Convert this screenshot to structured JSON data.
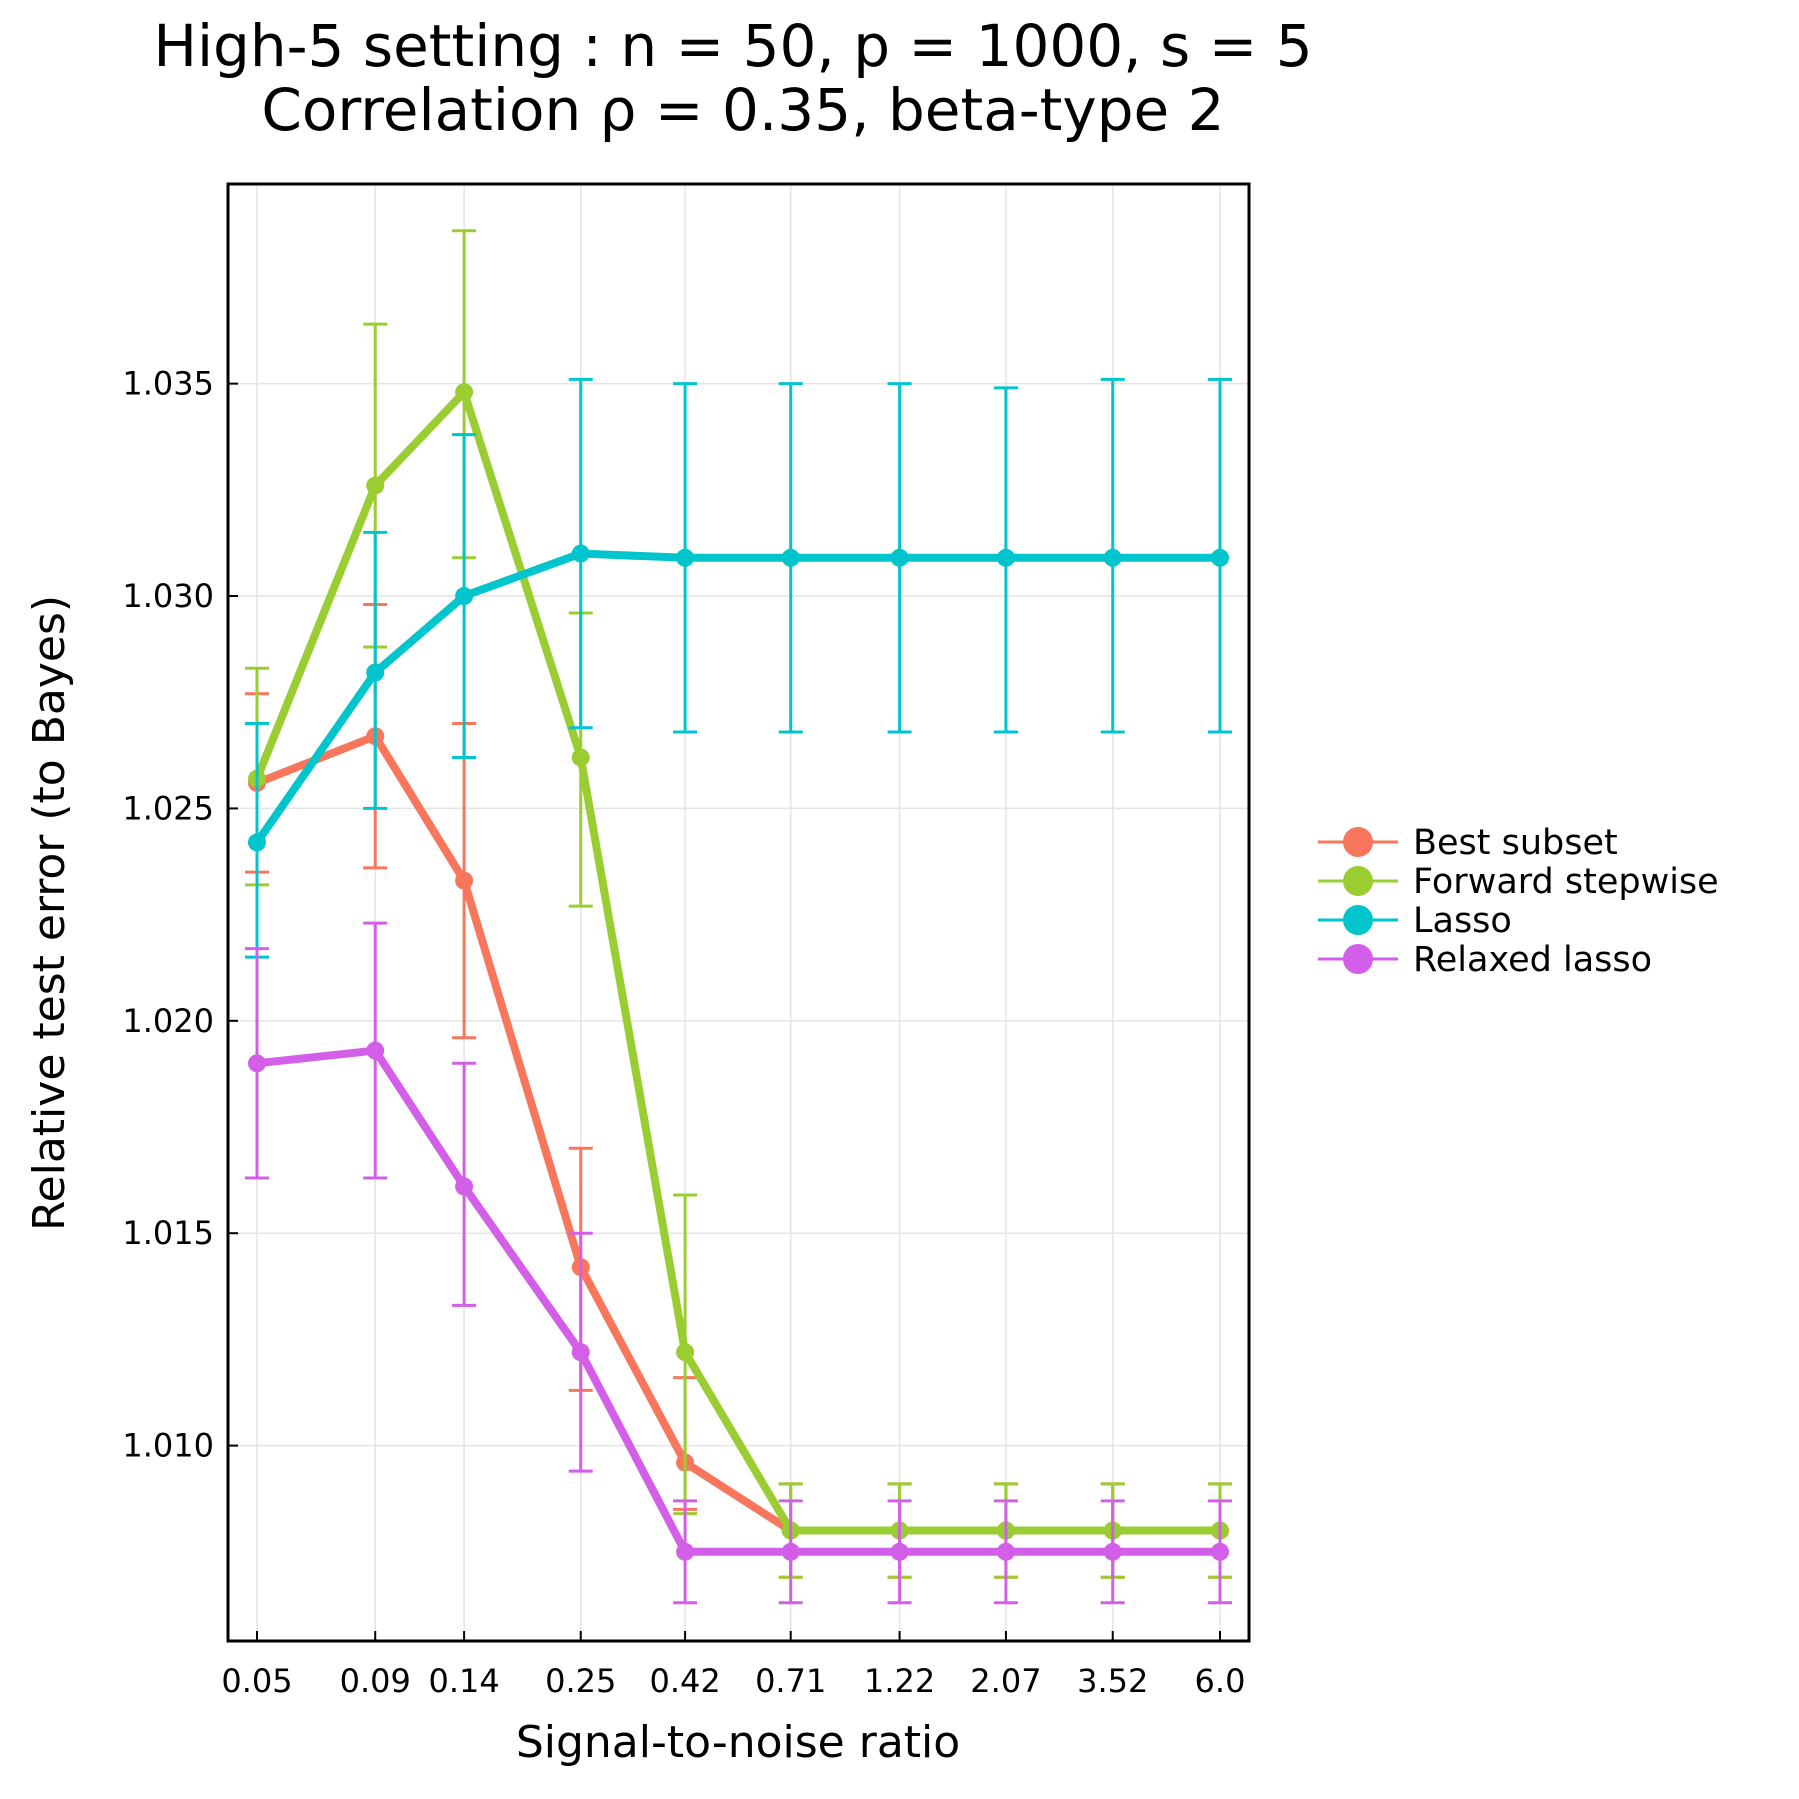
{
  "chart_data": {
    "type": "line",
    "title": [
      "High-5 setting : n = 50, p = 1000, s = 5",
      "Correlation ρ = 0.35, beta-type 2"
    ],
    "xlabel": "Signal-to-noise ratio",
    "ylabel": "Relative test error (to Bayes)",
    "x_scale": "log",
    "x": [
      0.05,
      0.09,
      0.14,
      0.25,
      0.42,
      0.71,
      1.22,
      2.07,
      3.52,
      6.0
    ],
    "x_tick_labels": [
      "0.05",
      "0.09",
      "0.14",
      "0.25",
      "0.42",
      "0.71",
      "1.22",
      "2.07",
      "3.52",
      "6.0"
    ],
    "y_ticks": [
      1.01,
      1.015,
      1.02,
      1.025,
      1.03,
      1.035
    ],
    "y_tick_labels": [
      "1.010",
      "1.015",
      "1.020",
      "1.025",
      "1.030",
      "1.035"
    ],
    "ylim": [
      1.0054,
      1.0397
    ],
    "grid": true,
    "legend_position": "right",
    "series": [
      {
        "name": "Best subset",
        "color": "#f8765c",
        "values": [
          1.0256,
          1.0267,
          1.0233,
          1.0142,
          1.0096,
          1.008,
          1.008,
          1.008,
          1.008,
          1.008
        ],
        "err_low": [
          1.0235,
          1.0236,
          1.0196,
          1.0113,
          1.0085,
          1.0069,
          1.0069,
          1.0069,
          1.0069,
          1.0069
        ],
        "err_high": [
          1.0277,
          1.0298,
          1.027,
          1.017,
          1.0116,
          1.0091,
          1.0091,
          1.0091,
          1.0091,
          1.0091
        ]
      },
      {
        "name": "Forward stepwise",
        "color": "#9acd32",
        "values": [
          1.0257,
          1.0326,
          1.0348,
          1.0262,
          1.0122,
          1.008,
          1.008,
          1.008,
          1.008,
          1.008
        ],
        "err_low": [
          1.0232,
          1.0288,
          1.0309,
          1.0227,
          1.0084,
          1.0069,
          1.0069,
          1.0069,
          1.0069,
          1.0069
        ],
        "err_high": [
          1.0283,
          1.0364,
          1.0386,
          1.0296,
          1.0159,
          1.0091,
          1.0091,
          1.0091,
          1.0091,
          1.0091
        ]
      },
      {
        "name": "Lasso",
        "color": "#00c5cd",
        "values": [
          1.0242,
          1.0282,
          1.03,
          1.031,
          1.0309,
          1.0309,
          1.0309,
          1.0309,
          1.0309,
          1.0309
        ],
        "err_low": [
          1.0215,
          1.025,
          1.0262,
          1.0269,
          1.0268,
          1.0268,
          1.0268,
          1.0268,
          1.0268,
          1.0268
        ],
        "err_high": [
          1.027,
          1.0315,
          1.0338,
          1.0351,
          1.035,
          1.035,
          1.035,
          1.0349,
          1.0351,
          1.0351
        ]
      },
      {
        "name": "Relaxed lasso",
        "color": "#d35fe8",
        "values": [
          1.019,
          1.0193,
          1.0161,
          1.0122,
          1.0075,
          1.0075,
          1.0075,
          1.0075,
          1.0075,
          1.0075
        ],
        "err_low": [
          1.0163,
          1.0163,
          1.0133,
          1.0094,
          1.0063,
          1.0063,
          1.0063,
          1.0063,
          1.0063,
          1.0063
        ],
        "err_high": [
          1.0217,
          1.0223,
          1.019,
          1.015,
          1.0087,
          1.0087,
          1.0087,
          1.0087,
          1.0087,
          1.0087
        ]
      }
    ]
  }
}
